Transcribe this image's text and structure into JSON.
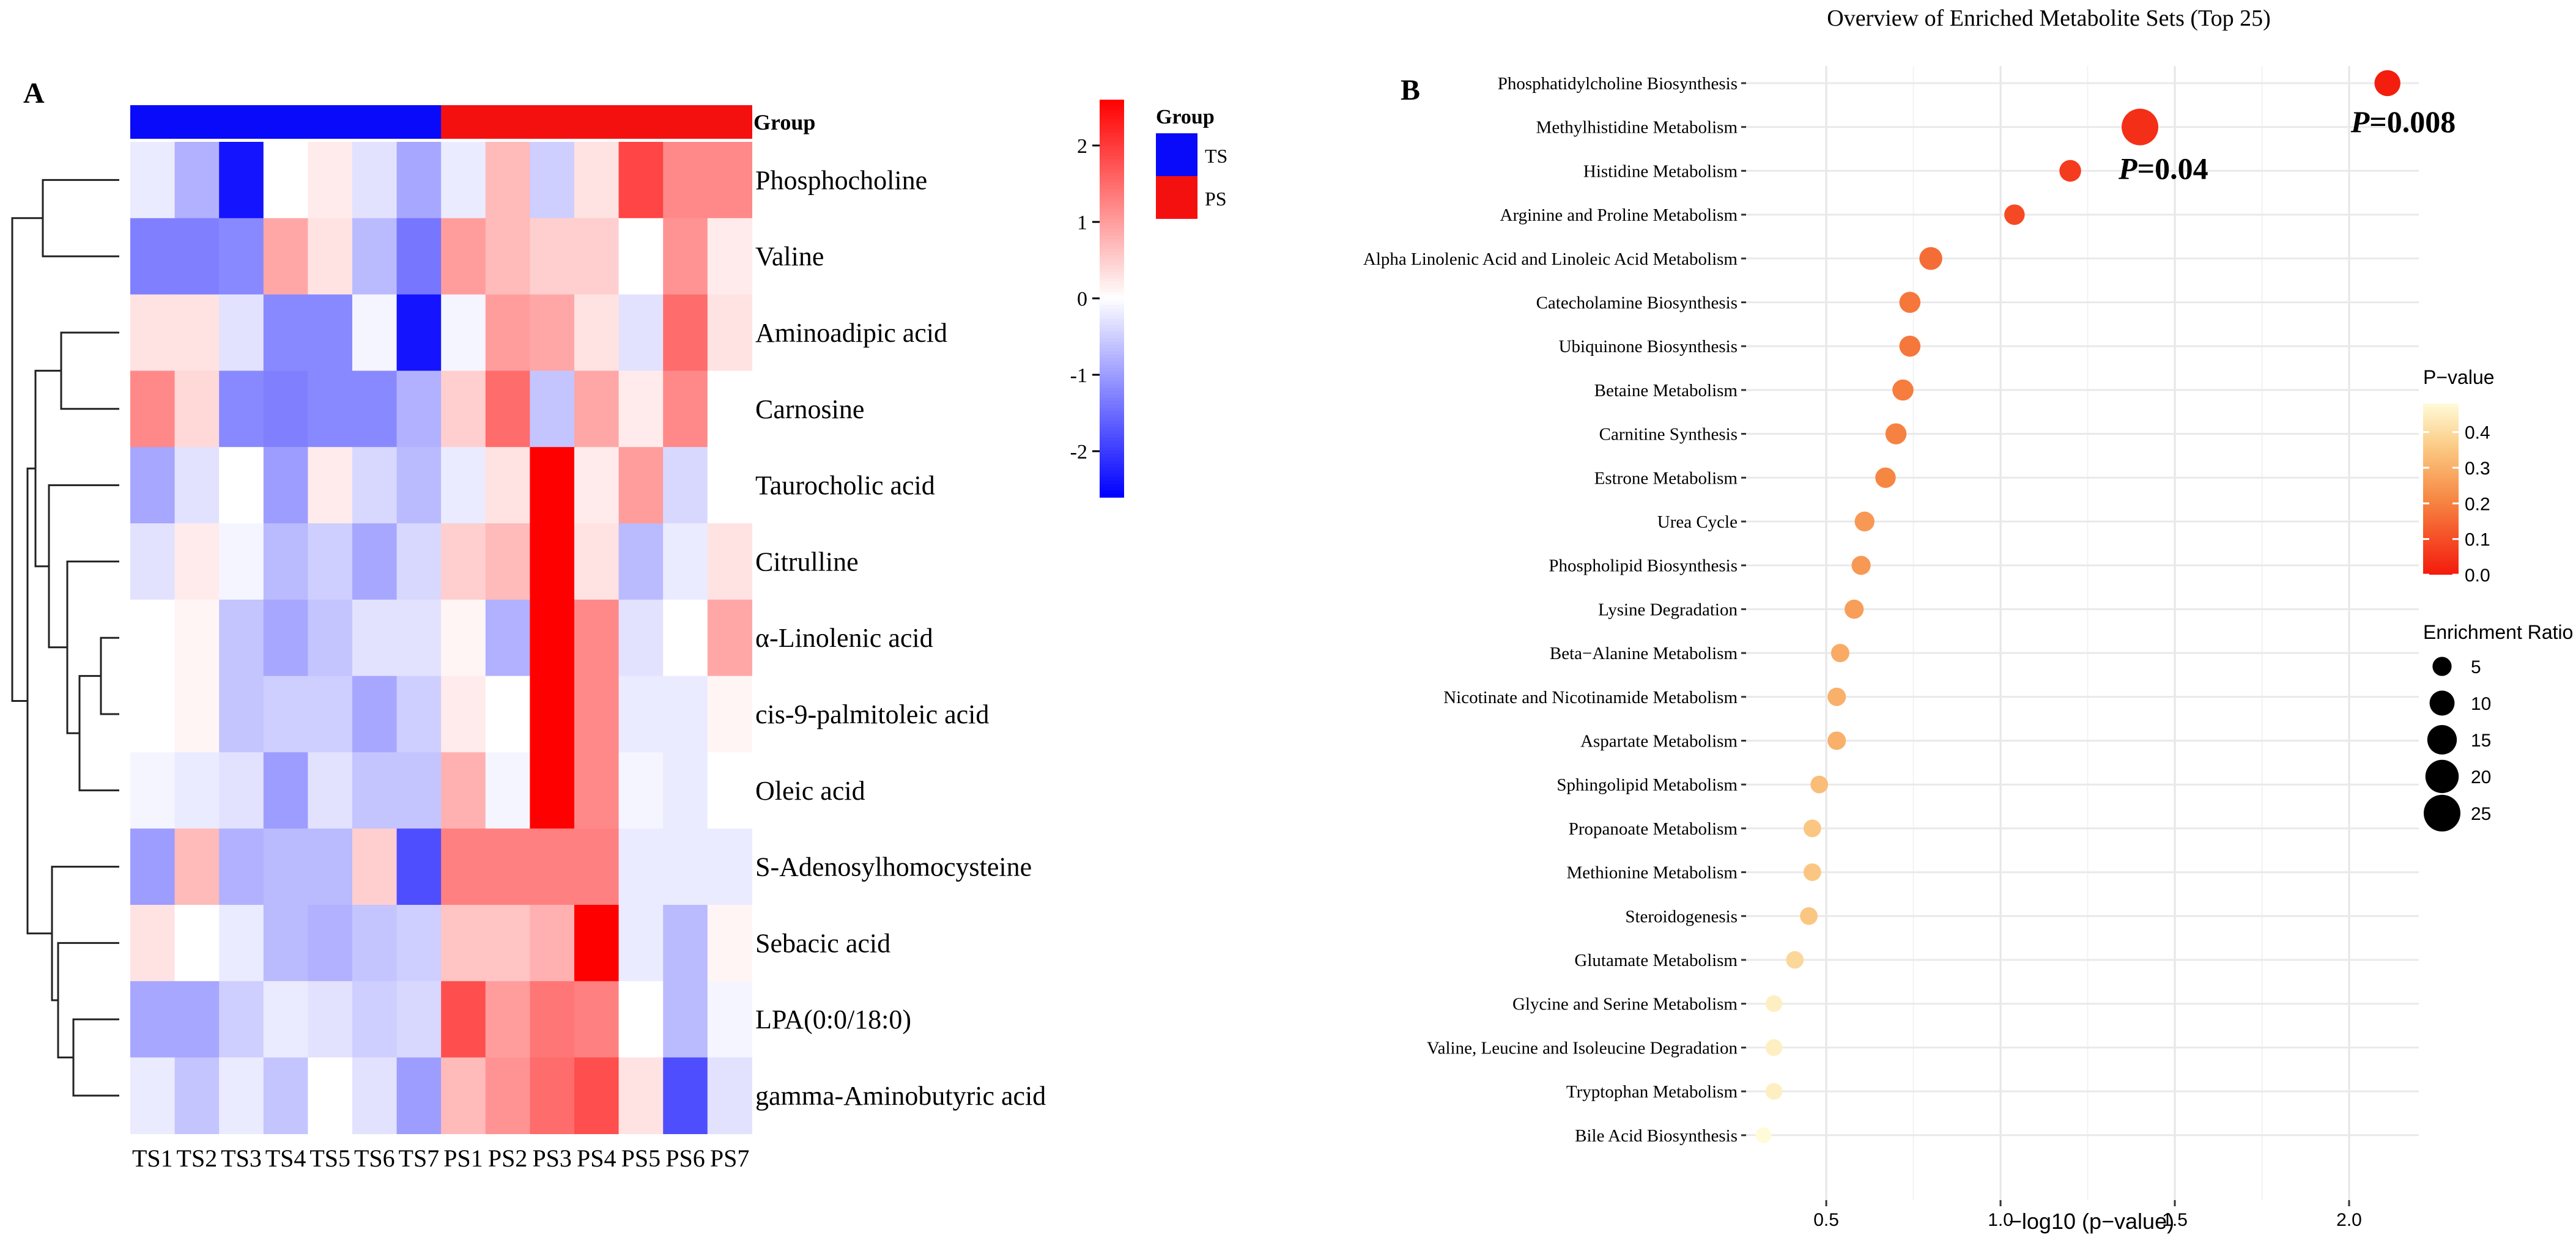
{
  "chart_data": [
    {
      "type": "heatmap",
      "panel_label": "A",
      "title": "",
      "columns": [
        "TS1",
        "TS2",
        "TS3",
        "TS4",
        "TS5",
        "TS6",
        "TS7",
        "PS1",
        "PS2",
        "PS3",
        "PS4",
        "PS5",
        "PS6",
        "PS7"
      ],
      "column_groups": [
        "TS",
        "TS",
        "TS",
        "TS",
        "TS",
        "TS",
        "TS",
        "PS",
        "PS",
        "PS",
        "PS",
        "PS",
        "PS",
        "PS"
      ],
      "group_annotation_label": "Group",
      "group_legend": {
        "title": "Group",
        "entries": [
          {
            "name": "TS",
            "color": "#0a0afa"
          },
          {
            "name": "PS",
            "color": "#f51010"
          }
        ]
      },
      "rows": [
        "Phosphocholine",
        "Valine",
        "Aminoadipic acid",
        "Carnosine",
        "Taurocholic acid",
        "Citrulline",
        "α-Linolenic acid",
        "cis-9-palmitoleic acid",
        "Oleic acid",
        "S-Adenosylhomocysteine",
        "Sebacic acid",
        "LPA(0:0/18:0)",
        "gamma-Aminobutyric acid"
      ],
      "values": [
        [
          -0.2,
          -0.8,
          -2.4,
          0.0,
          0.2,
          -0.3,
          -0.9,
          -0.2,
          0.7,
          -0.5,
          0.3,
          1.9,
          1.2,
          1.2
        ],
        [
          -1.3,
          -1.3,
          -1.2,
          0.9,
          0.3,
          -0.7,
          -1.4,
          1.0,
          0.7,
          0.5,
          0.5,
          0.0,
          1.1,
          0.2
        ],
        [
          0.3,
          0.3,
          -0.3,
          -1.2,
          -1.2,
          -0.1,
          -2.4,
          -0.1,
          1.0,
          0.9,
          0.3,
          -0.3,
          1.5,
          0.3
        ],
        [
          1.2,
          0.4,
          -1.2,
          -1.3,
          -1.2,
          -1.2,
          -0.8,
          0.5,
          1.5,
          -0.6,
          0.9,
          0.2,
          1.2,
          0.0
        ],
        [
          -0.9,
          -0.3,
          0.0,
          -1.0,
          0.2,
          -0.4,
          -0.7,
          -0.2,
          0.3,
          2.6,
          0.2,
          1.0,
          -0.4,
          0.0
        ],
        [
          -0.3,
          0.2,
          -0.1,
          -0.7,
          -0.5,
          -0.9,
          -0.4,
          0.5,
          0.7,
          2.6,
          0.3,
          -0.7,
          -0.2,
          0.3
        ],
        [
          0.0,
          0.1,
          -0.6,
          -0.9,
          -0.6,
          -0.3,
          -0.3,
          0.1,
          -0.8,
          2.6,
          1.2,
          -0.3,
          0.0,
          0.9
        ],
        [
          0.0,
          0.1,
          -0.6,
          -0.5,
          -0.5,
          -0.9,
          -0.5,
          0.2,
          0.0,
          2.6,
          1.2,
          -0.2,
          -0.2,
          0.1
        ],
        [
          -0.1,
          -0.2,
          -0.3,
          -1.0,
          -0.3,
          -0.6,
          -0.6,
          0.8,
          -0.1,
          2.6,
          1.2,
          -0.1,
          -0.2,
          0.0
        ],
        [
          -1.0,
          0.7,
          -0.8,
          -0.7,
          -0.7,
          0.5,
          -1.8,
          1.3,
          1.3,
          1.3,
          1.3,
          -0.2,
          -0.2,
          -0.2
        ],
        [
          0.3,
          0.0,
          -0.2,
          -0.7,
          -0.8,
          -0.6,
          -0.5,
          0.6,
          0.6,
          0.8,
          2.6,
          -0.2,
          -0.7,
          0.1
        ],
        [
          -0.9,
          -0.9,
          -0.5,
          -0.2,
          -0.3,
          -0.5,
          -0.4,
          1.8,
          1.0,
          1.4,
          1.3,
          0.0,
          -0.7,
          -0.1
        ],
        [
          -0.2,
          -0.6,
          -0.2,
          -0.6,
          0.0,
          -0.3,
          -1.0,
          0.7,
          1.1,
          1.5,
          1.8,
          0.3,
          -1.8,
          -0.3
        ]
      ],
      "color_scale": {
        "ticks": [
          2,
          1,
          0,
          -1,
          -2
        ],
        "tick_labels": [
          "2",
          "1",
          "0",
          "-1",
          "-2"
        ],
        "range": [
          -2.6,
          2.6
        ],
        "low_color": "#0000ff",
        "mid_color": "#ffffff",
        "high_color": "#ff0000"
      }
    },
    {
      "type": "scatter",
      "panel_label": "B",
      "title": "Overview of Enriched Metabolite Sets (Top 25)",
      "xlabel": "−log10 (p−value)",
      "ylabel": "",
      "xlim": [
        0.27,
        2.2
      ],
      "x_ticks": [
        0.5,
        1.0,
        1.5,
        2.0
      ],
      "x_tick_labels": [
        "0.5",
        "1.0",
        "1.5",
        "2.0"
      ],
      "grid": true,
      "categories": [
        "Phosphatidylcholine Biosynthesis",
        "Methylhistidine Metabolism",
        "Histidine Metabolism",
        "Arginine and Proline Metabolism",
        "Alpha Linolenic Acid and Linoleic Acid Metabolism",
        "Catecholamine Biosynthesis",
        "Ubiquinone Biosynthesis",
        "Betaine Metabolism",
        "Carnitine Synthesis",
        "Estrone Metabolism",
        "Urea Cycle",
        "Phospholipid Biosynthesis",
        "Lysine Degradation",
        "Beta−Alanine Metabolism",
        "Nicotinate and Nicotinamide Metabolism",
        "Aspartate Metabolism",
        "Sphingolipid Metabolism",
        "Propanoate Metabolism",
        "Methionine Metabolism",
        "Steroidogenesis",
        "Glutamate Metabolism",
        "Glycine and Serine Metabolism",
        "Valine, Leucine and Isoleucine Degradation",
        "Tryptophan Metabolism",
        "Bile Acid Biosynthesis"
      ],
      "x": [
        2.11,
        1.4,
        1.2,
        1.04,
        0.8,
        0.74,
        0.74,
        0.72,
        0.7,
        0.67,
        0.61,
        0.6,
        0.58,
        0.54,
        0.53,
        0.53,
        0.48,
        0.46,
        0.46,
        0.45,
        0.41,
        0.35,
        0.35,
        0.35,
        0.32
      ],
      "p_value": [
        0.008,
        0.04,
        0.063,
        0.091,
        0.16,
        0.18,
        0.18,
        0.19,
        0.2,
        0.21,
        0.25,
        0.25,
        0.26,
        0.29,
        0.3,
        0.3,
        0.33,
        0.35,
        0.35,
        0.35,
        0.39,
        0.45,
        0.45,
        0.45,
        0.48
      ],
      "enrichment_ratio": [
        11,
        25,
        7,
        6,
        8,
        6.5,
        6.5,
        6.5,
        6.5,
        6,
        5.5,
        5,
        5,
        4.5,
        4.5,
        4.5,
        4,
        4,
        4,
        4,
        4,
        3.5,
        3.5,
        3.5,
        3
      ],
      "annotations": [
        {
          "target_index": 0,
          "italic_part": "P",
          "text": "=0.008"
        },
        {
          "target_index": 1,
          "italic_part": "P",
          "text": "=0.04"
        }
      ],
      "legend_pvalue": {
        "title": "P−value",
        "ticks": [
          0.4,
          0.3,
          0.2,
          0.1,
          0.0
        ],
        "tick_labels": [
          "0.4",
          "0.3",
          "0.2",
          "0.1",
          "0.0"
        ],
        "range": [
          0.0,
          0.48
        ],
        "low_color": "#f41a0c",
        "mid_color": "#f8a25a",
        "high_color": "#fffbd8"
      },
      "legend_size": {
        "title": "Enrichment Ratio",
        "values": [
          5,
          10,
          15,
          20,
          25
        ],
        "labels": [
          "5",
          "10",
          "15",
          "20",
          "25"
        ]
      }
    }
  ]
}
